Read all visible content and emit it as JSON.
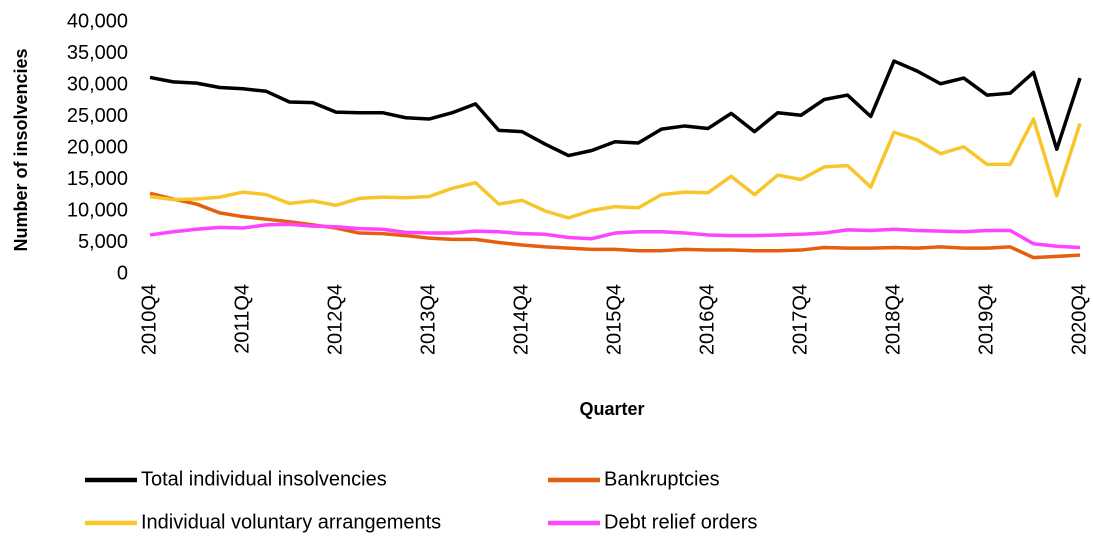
{
  "chart_data": {
    "type": "line",
    "x_label": "Quarter",
    "y_label": "Number of insolvencies",
    "categories": [
      "2010Q4",
      null,
      null,
      null,
      "2011Q4",
      null,
      null,
      null,
      "2012Q4",
      null,
      null,
      null,
      "2013Q4",
      null,
      null,
      null,
      "2014Q4",
      null,
      null,
      null,
      "2015Q4",
      null,
      null,
      null,
      "2016Q4",
      null,
      null,
      null,
      "2017Q4",
      null,
      null,
      null,
      "2018Q4",
      null,
      null,
      null,
      "2019Q4",
      null,
      null,
      null,
      "2020Q4"
    ],
    "ylim": [
      0,
      40000
    ],
    "yticks": [
      0,
      {
        "value": 5000,
        "label": "5,000"
      },
      {
        "value": 10000,
        "label": "10,000"
      },
      {
        "value": 15000,
        "label": "15,000"
      },
      {
        "value": 20000,
        "label": "20,000"
      },
      {
        "value": 25000,
        "label": "25,000"
      },
      {
        "value": 30000,
        "label": "30,000"
      },
      {
        "value": 35000,
        "label": "35,000"
      },
      {
        "value": 40000,
        "label": "40,000"
      }
    ],
    "grid": false,
    "series": [
      {
        "name": "Total individual insolvencies",
        "color": "#000000",
        "values": [
          31200,
          30500,
          30300,
          29600,
          29400,
          29000,
          27300,
          27200,
          25700,
          25600,
          25600,
          24800,
          24600,
          25600,
          27000,
          22800,
          22600,
          20600,
          18800,
          19600,
          21000,
          20800,
          23000,
          23500,
          23100,
          25500,
          22600,
          25600,
          25200,
          27700,
          28400,
          25000,
          33800,
          32200,
          30200,
          31100,
          28400,
          28700,
          32000,
          19800,
          31100
        ]
      },
      {
        "name": "Bankruptcies",
        "color": "#e4600f",
        "values": [
          12800,
          11900,
          11100,
          9700,
          9100,
          8700,
          8300,
          7800,
          7300,
          6500,
          6400,
          6100,
          5700,
          5500,
          5500,
          5000,
          4600,
          4300,
          4100,
          3900,
          3900,
          3700,
          3700,
          3900,
          3800,
          3800,
          3700,
          3700,
          3800,
          4200,
          4100,
          4100,
          4200,
          4100,
          4300,
          4100,
          4100,
          4300,
          2600,
          2800,
          3000
        ]
      },
      {
        "name": "Individual voluntary arrangements",
        "color": "#f8c62a",
        "values": [
          12300,
          11800,
          11900,
          12200,
          13000,
          12600,
          11200,
          11600,
          10900,
          12000,
          12200,
          12100,
          12300,
          13600,
          14500,
          11100,
          11700,
          10000,
          8900,
          10100,
          10700,
          10500,
          12600,
          13000,
          12900,
          15500,
          12600,
          15700,
          15000,
          17000,
          17200,
          13800,
          22500,
          21300,
          19100,
          20200,
          17400,
          17400,
          24600,
          12400,
          23900
        ]
      },
      {
        "name": "Debt relief orders",
        "color": "#ff44ff",
        "values": [
          6200,
          6700,
          7100,
          7400,
          7300,
          7800,
          7900,
          7600,
          7500,
          7200,
          7100,
          6600,
          6500,
          6500,
          6800,
          6700,
          6400,
          6300,
          5800,
          5600,
          6500,
          6700,
          6700,
          6500,
          6200,
          6100,
          6100,
          6200,
          6300,
          6500,
          7000,
          6900,
          7100,
          6900,
          6800,
          6700,
          6900,
          6900,
          4800,
          4400,
          4200
        ]
      }
    ]
  }
}
